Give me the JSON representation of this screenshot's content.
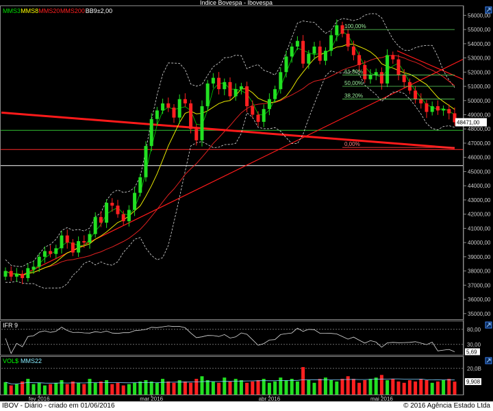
{
  "header": {
    "title": "Indice Bovespa - Ibovespa"
  },
  "legend_main": [
    {
      "label": "MMS3",
      "color": "#00e000"
    },
    {
      "label": "MMS8",
      "color": "#ffff00"
    },
    {
      "label": "MMS20",
      "color": "#ff2020"
    },
    {
      "label": "MMS200",
      "color": "#ff2020"
    },
    {
      "label": "BB9±2,00",
      "color": "#ffffff"
    }
  ],
  "rsi_panel": {
    "title": "IFR 9",
    "ticks": [
      "80,00",
      "30,00"
    ],
    "last_value": "5,69"
  },
  "vol_panel": {
    "title": "VOL$",
    "ma_label": "MMS22",
    "ticks": [
      "20,0B"
    ],
    "last_value": "9,908"
  },
  "fib_labels": [
    "100,00%",
    "61,80%",
    "50,00%",
    "38,20%",
    "0,00%"
  ],
  "last_price_label": "48471,00",
  "footer": {
    "left": "IBOV - Diário - criado em 01/06/2016",
    "right": "© 2016 Agência Estado Ltda"
  },
  "chart_data": {
    "type": "candlestick",
    "title": "Indice Bovespa - Ibovespa",
    "y_ticks": [
      "56000,00",
      "55000,00",
      "54000,00",
      "53000,00",
      "52000,00",
      "51000,00",
      "50000,00",
      "49000,00",
      "48000,00",
      "47000,00",
      "46000,00",
      "45000,00",
      "44000,00",
      "43000,00",
      "42000,00",
      "41000,00",
      "40000,00",
      "39000,00",
      "38000,00",
      "37000,00",
      "36000,00",
      "35000,00"
    ],
    "ylim": [
      34700,
      56500
    ],
    "x_labels": [
      {
        "label": "fev 2016",
        "index": 6
      },
      {
        "label": "mar 2016",
        "index": 26
      },
      {
        "label": "abr 2016",
        "index": 47
      },
      {
        "label": "mai 2016",
        "index": 67
      }
    ],
    "closes": [
      38000,
      37600,
      37800,
      37500,
      38200,
      38300,
      39000,
      39400,
      39200,
      39600,
      40500,
      40000,
      39300,
      40100,
      40000,
      40600,
      41800,
      41400,
      42800,
      42600,
      42000,
      41500,
      42300,
      43500,
      44600,
      46800,
      48700,
      49300,
      49800,
      49500,
      48800,
      50100,
      49800,
      48000,
      47200,
      49600,
      51200,
      51600,
      50800,
      51300,
      50300,
      50800,
      51000,
      49600,
      49000,
      48500,
      49400,
      50100,
      50800,
      52000,
      53100,
      53800,
      54200,
      52600,
      53300,
      53800,
      52800,
      53500,
      54600,
      55300,
      54700,
      53800,
      53200,
      52500,
      51500,
      51800,
      52000,
      51200,
      53200,
      52900,
      51800,
      51300,
      50700,
      50100,
      49800,
      49200,
      49600,
      49300,
      49400,
      49100,
      48471
    ],
    "opens": [
      37600,
      38000,
      37600,
      37800,
      37500,
      38100,
      38300,
      39000,
      39400,
      39200,
      39600,
      40500,
      40000,
      39300,
      40100,
      40000,
      40600,
      41800,
      41400,
      42800,
      42600,
      42000,
      41500,
      42300,
      43500,
      44600,
      46800,
      48700,
      49300,
      49800,
      49500,
      48800,
      50100,
      49800,
      48000,
      47200,
      49600,
      51200,
      51600,
      50800,
      51300,
      50300,
      50800,
      51000,
      49600,
      49000,
      48500,
      49400,
      50100,
      50800,
      52000,
      53100,
      53800,
      54200,
      52600,
      53300,
      53800,
      52800,
      53500,
      54600,
      55300,
      54700,
      53800,
      53200,
      52500,
      51500,
      51800,
      52000,
      51200,
      53200,
      52900,
      51800,
      51300,
      50700,
      50100,
      49800,
      49200,
      49600,
      49300,
      49400,
      49100
    ],
    "volumes": [
      9.5,
      7,
      8,
      10,
      12,
      8,
      9,
      7,
      8,
      9,
      11,
      8,
      10,
      9,
      8,
      12,
      9,
      10,
      11,
      8,
      9,
      7,
      8,
      9,
      10,
      11,
      10,
      9,
      12,
      10,
      9,
      11,
      10,
      9,
      12,
      14,
      11,
      10,
      9,
      13,
      10,
      12,
      11,
      9,
      10,
      11,
      12,
      9,
      10,
      13,
      11,
      12,
      10,
      21,
      11,
      9,
      12,
      13,
      11,
      10,
      12,
      14,
      12,
      9,
      11,
      12,
      13,
      15,
      11,
      12,
      10,
      9,
      11,
      10,
      12,
      11,
      9,
      10,
      11,
      12,
      9.9
    ]
  }
}
